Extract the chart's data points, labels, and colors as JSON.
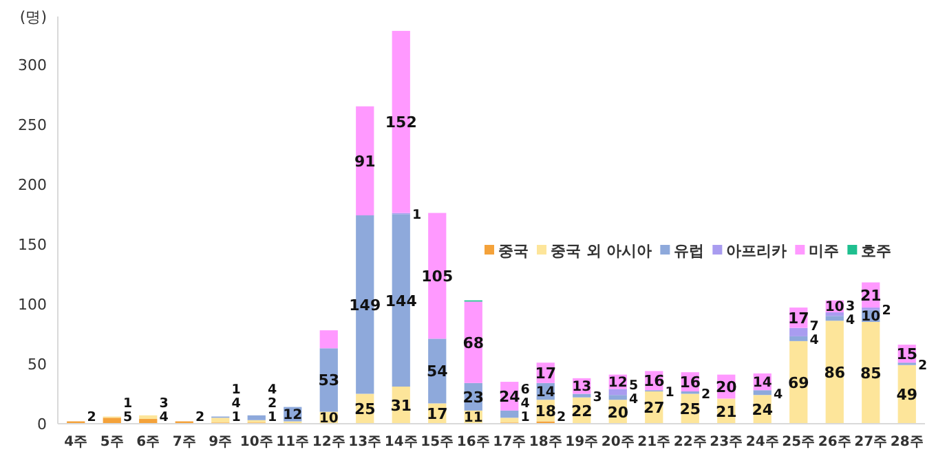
{
  "chart_data": {
    "type": "bar",
    "stacked": true,
    "ylabel": "(명)",
    "categories": [
      "4주",
      "5주",
      "6주",
      "7주",
      "9주",
      "10주",
      "11주",
      "12주",
      "13주",
      "14주",
      "15주",
      "16주",
      "17주",
      "18주",
      "19주",
      "20주",
      "21주",
      "22주",
      "23주",
      "24주",
      "25주",
      "26주",
      "27주",
      "28주"
    ],
    "ylim": [
      0,
      340
    ],
    "yticks": [
      0,
      50,
      100,
      150,
      200,
      250,
      300
    ],
    "grid": false,
    "legend": "right",
    "series": [
      {
        "name": "중국",
        "color": "#f4a23a",
        "values": [
          2,
          5,
          4,
          2,
          1,
          1,
          0,
          0,
          0,
          0,
          0,
          0,
          1,
          2,
          0,
          0,
          0,
          0,
          0,
          0,
          0,
          0,
          0,
          0
        ],
        "value_labels": [
          "2",
          "5",
          "4",
          "2",
          "1",
          "1",
          null,
          null,
          null,
          null,
          null,
          null,
          "1",
          "2",
          null,
          null,
          null,
          null,
          null,
          null,
          null,
          null,
          null,
          null
        ]
      },
      {
        "name": "중국 외 아시아",
        "color": "#fde59a",
        "values": [
          0,
          1,
          3,
          0,
          4,
          2,
          2,
          10,
          25,
          31,
          17,
          11,
          4,
          18,
          22,
          20,
          27,
          25,
          21,
          24,
          69,
          86,
          85,
          49
        ],
        "value_labels": [
          null,
          "1",
          "3",
          null,
          "4",
          "2",
          null,
          "10",
          "25",
          "31",
          "17",
          "11",
          "4",
          "18",
          "22",
          "20",
          "27",
          "25",
          "21",
          "24",
          "69",
          "86",
          "85",
          "49"
        ]
      },
      {
        "name": "유럽",
        "color": "#8ea9db",
        "values": [
          0,
          0,
          0,
          0,
          1,
          4,
          12,
          53,
          149,
          144,
          54,
          23,
          6,
          14,
          3,
          4,
          1,
          2,
          0,
          4,
          4,
          4,
          10,
          2
        ],
        "value_labels": [
          null,
          null,
          null,
          null,
          "1",
          "4",
          "12",
          "53",
          "149",
          "144",
          "54",
          "23",
          "6",
          "14",
          "3",
          "4",
          "1",
          "2",
          null,
          "4",
          "4",
          "4",
          "10",
          "2"
        ]
      },
      {
        "name": "아프리카",
        "color": "#a99cf0",
        "values": [
          0,
          0,
          0,
          0,
          0,
          0,
          0,
          0,
          0,
          1,
          0,
          0,
          0,
          0,
          0,
          5,
          0,
          0,
          0,
          0,
          7,
          3,
          2,
          0
        ],
        "value_labels": [
          null,
          null,
          null,
          null,
          null,
          null,
          null,
          null,
          null,
          "1",
          null,
          null,
          null,
          null,
          null,
          "5",
          null,
          null,
          null,
          null,
          "7",
          "3",
          "2",
          null
        ]
      },
      {
        "name": "미주",
        "color": "#ff99ff",
        "values": [
          0,
          0,
          0,
          0,
          0,
          0,
          0,
          15,
          91,
          152,
          105,
          68,
          24,
          17,
          13,
          12,
          16,
          16,
          20,
          14,
          17,
          10,
          21,
          15
        ],
        "value_labels": [
          null,
          null,
          null,
          null,
          null,
          null,
          null,
          null,
          "91",
          "152",
          "105",
          "68",
          "24",
          "17",
          "13",
          "12",
          "16",
          "16",
          "20",
          "14",
          "17",
          "10",
          "21",
          "15"
        ]
      },
      {
        "name": "호주",
        "color": "#1fbf8f",
        "values": [
          0,
          0,
          0,
          0,
          0,
          0,
          0,
          0,
          0,
          0,
          0,
          1,
          0,
          0,
          0,
          0,
          0,
          0,
          0,
          0,
          0,
          0,
          0,
          0
        ],
        "value_labels": [
          null,
          null,
          null,
          null,
          null,
          null,
          null,
          null,
          null,
          null,
          null,
          null,
          null,
          null,
          null,
          null,
          null,
          null,
          null,
          null,
          null,
          null,
          null,
          null
        ]
      }
    ]
  }
}
